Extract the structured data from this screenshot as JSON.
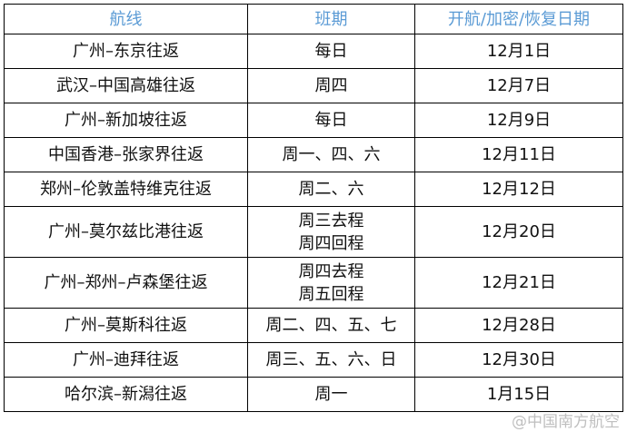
{
  "headers": [
    "航线",
    "班期",
    "开航/加密/恢复日期"
  ],
  "rows": [
    {
      "route": "广州–东京往返",
      "schedule": [
        "每日"
      ],
      "date": "12月1日"
    },
    {
      "route": "武汉–中国高雄往返",
      "schedule": [
        "周四"
      ],
      "date": "12月7日"
    },
    {
      "route": "广州–新加坡往返",
      "schedule": [
        "每日"
      ],
      "date": "12月9日"
    },
    {
      "route": "中国香港–张家界往返",
      "schedule": [
        "周一、四、六"
      ],
      "date": "12月11日"
    },
    {
      "route": "郑州–伦敦盖特维克往返",
      "schedule": [
        "周二、六"
      ],
      "date": "12月12日"
    },
    {
      "route": "广州–莫尔兹比港往返",
      "schedule": [
        "周三去程",
        "周四回程"
      ],
      "date": "12月20日"
    },
    {
      "route": "广州–郑州–卢森堡往返",
      "schedule": [
        "周四去程",
        "周五回程"
      ],
      "date": "12月21日"
    },
    {
      "route": "广州–莫斯科往返",
      "schedule": [
        "周二、四、五、七"
      ],
      "date": "12月28日"
    },
    {
      "route": "广州–迪拜往返",
      "schedule": [
        "周三、五、六、日"
      ],
      "date": "12月30日"
    },
    {
      "route": "哈尔滨–新潟往返",
      "schedule": [
        "周一"
      ],
      "date": "1月15日"
    }
  ],
  "watermark": "@中国南方航空",
  "colors": {
    "header_text": "#5b9bd5"
  }
}
